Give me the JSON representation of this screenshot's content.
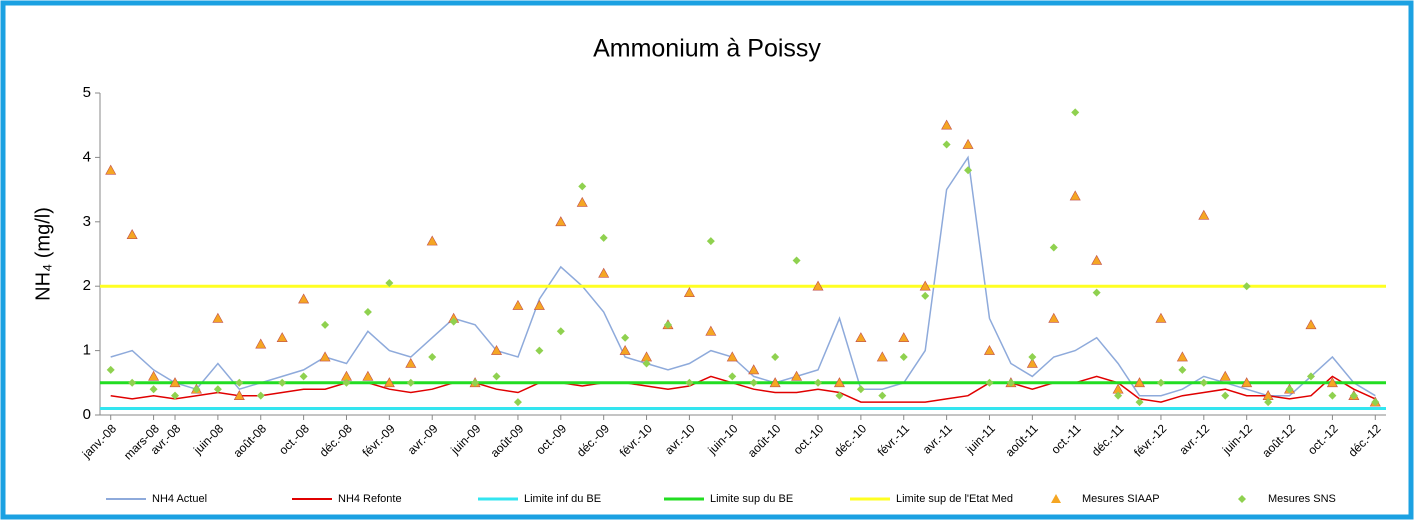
{
  "chart_data": {
    "type": "line",
    "title": "Ammonium à Poissy",
    "y_label": "NH₄ (mg/l)",
    "categories": [
      "janv.-08",
      null,
      "mars-08",
      "avr.-08",
      null,
      "juin-08",
      null,
      "août-08",
      null,
      "oct.-08",
      null,
      "déc.-08",
      null,
      "févr.-09",
      null,
      "avr.-09",
      null,
      "juin-09",
      null,
      "août-09",
      null,
      "oct.-09",
      null,
      "déc.-09",
      null,
      "févr.-10",
      null,
      "avr.-10",
      null,
      "juin-10",
      null,
      "août-10",
      null,
      "oct.-10",
      null,
      "déc.-10",
      null,
      "févr.-11",
      null,
      "avr.-11",
      null,
      "juin-11",
      null,
      "août-11",
      null,
      "oct.-11",
      null,
      "déc.-11",
      null,
      "févr.-12",
      null,
      "avr.-12",
      null,
      "juin-12",
      null,
      "août-12",
      null,
      "oct.-12",
      null,
      "déc.-12"
    ],
    "series": [
      {
        "name": "NH4 Actuel",
        "color": "#8eaadb",
        "style": "line",
        "values": [
          0.9,
          1.0,
          0.7,
          0.5,
          0.4,
          0.8,
          0.4,
          0.5,
          0.6,
          0.7,
          0.9,
          0.8,
          1.3,
          1.0,
          0.9,
          1.2,
          1.5,
          1.4,
          1.0,
          0.9,
          1.8,
          2.3,
          2.0,
          1.6,
          0.9,
          0.8,
          0.7,
          0.8,
          1.0,
          0.9,
          0.6,
          0.5,
          0.6,
          0.7,
          1.5,
          0.4,
          0.4,
          0.5,
          1.0,
          3.5,
          4.0,
          1.5,
          0.8,
          0.6,
          0.9,
          1.0,
          1.2,
          0.8,
          0.3,
          0.3,
          0.4,
          0.6,
          0.5,
          0.4,
          0.3,
          0.3,
          0.6,
          0.9,
          0.5,
          0.3
        ]
      },
      {
        "name": "NH4 Refonte",
        "color": "#e00000",
        "style": "line",
        "values": [
          0.3,
          0.25,
          0.3,
          0.25,
          0.3,
          0.35,
          0.3,
          0.3,
          0.35,
          0.4,
          0.4,
          0.5,
          0.5,
          0.4,
          0.35,
          0.4,
          0.5,
          0.5,
          0.4,
          0.35,
          0.5,
          0.5,
          0.45,
          0.5,
          0.5,
          0.45,
          0.4,
          0.45,
          0.6,
          0.5,
          0.4,
          0.35,
          0.35,
          0.4,
          0.35,
          0.2,
          0.2,
          0.2,
          0.2,
          0.25,
          0.3,
          0.5,
          0.5,
          0.4,
          0.5,
          0.5,
          0.6,
          0.5,
          0.25,
          0.2,
          0.3,
          0.35,
          0.4,
          0.3,
          0.3,
          0.25,
          0.3,
          0.6,
          0.4,
          0.25
        ]
      },
      {
        "name": "Limite inf du BE",
        "color": "#33e5f0",
        "style": "hline",
        "value": 0.1
      },
      {
        "name": "Limite sup du BE",
        "color": "#22dd22",
        "style": "hline",
        "value": 0.5
      },
      {
        "name": "Limite sup de l'Etat Med",
        "color": "#ffff22",
        "style": "hline",
        "value": 2
      },
      {
        "name": "Mesures SIAAP",
        "color": "#f5a623",
        "style": "triangle",
        "values": [
          3.8,
          2.8,
          0.6,
          0.5,
          0.4,
          1.5,
          0.3,
          1.1,
          1.2,
          1.8,
          0.9,
          0.6,
          0.6,
          0.5,
          0.8,
          2.7,
          1.5,
          0.5,
          1.0,
          1.7,
          1.7,
          3.0,
          3.3,
          2.2,
          1.0,
          0.9,
          1.4,
          1.9,
          1.3,
          0.9,
          0.7,
          0.5,
          0.6,
          2.0,
          0.5,
          1.2,
          0.9,
          1.2,
          2.0,
          4.5,
          4.2,
          1.0,
          0.5,
          0.8,
          1.5,
          3.4,
          2.4,
          0.4,
          0.5,
          1.5,
          0.9,
          3.1,
          0.6,
          0.5,
          0.3,
          0.4,
          1.4,
          0.5,
          0.3,
          0.2
        ]
      },
      {
        "name": "Mesures SNS",
        "color": "#8fd14f",
        "style": "diamond",
        "values": [
          0.7,
          0.5,
          0.4,
          0.3,
          0.4,
          0.4,
          0.5,
          0.3,
          0.5,
          0.6,
          1.4,
          0.5,
          1.6,
          2.05,
          0.5,
          0.9,
          1.45,
          0.5,
          0.6,
          0.2,
          1.0,
          1.3,
          3.55,
          2.75,
          1.2,
          0.8,
          1.4,
          0.5,
          2.7,
          0.6,
          0.5,
          0.9,
          2.4,
          0.5,
          0.3,
          0.4,
          0.3,
          0.9,
          1.85,
          4.2,
          3.8,
          0.5,
          0.5,
          0.9,
          2.6,
          4.7,
          1.9,
          0.3,
          0.2,
          0.5,
          0.7,
          0.5,
          0.3,
          2.0,
          0.2,
          0.4,
          0.6,
          0.3,
          0.3,
          0.2
        ]
      }
    ],
    "ylim": [
      0,
      5
    ],
    "yticks": [
      0,
      1,
      2,
      3,
      4,
      5
    ],
    "legend": "bottom"
  }
}
